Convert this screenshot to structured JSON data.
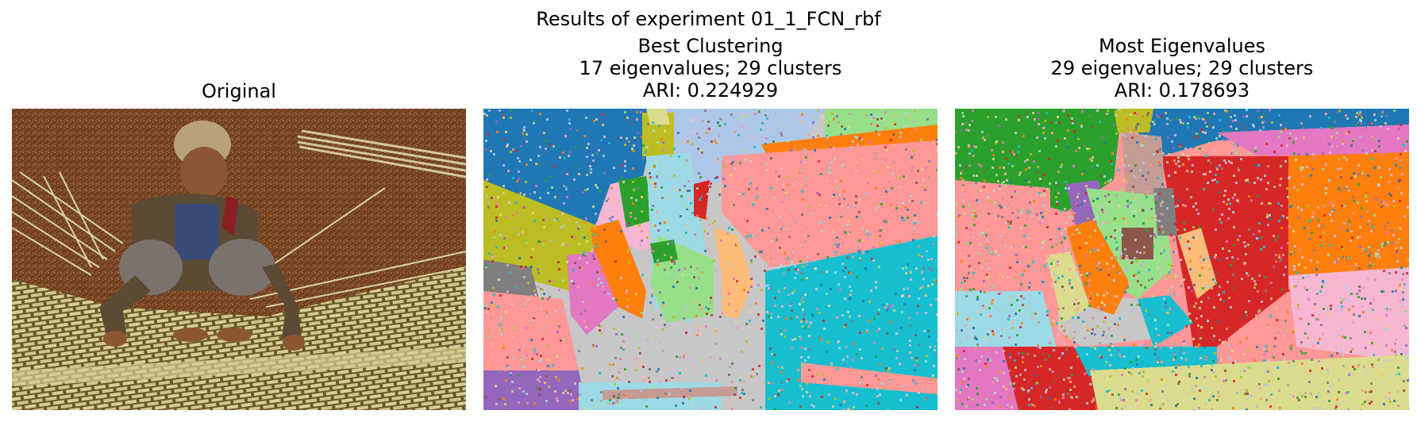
{
  "figure": {
    "suptitle": "Results of experiment 01_1_FCN_rbf"
  },
  "panels": [
    {
      "id": "original",
      "title_lines": [
        "Original"
      ],
      "content": "photo"
    },
    {
      "id": "best",
      "title_lines": [
        "Best Clustering",
        "17 eigenvalues; 29 clusters",
        "ARI: 0.224929"
      ],
      "eigenvalues": 17,
      "clusters": 29,
      "ari": 0.224929
    },
    {
      "id": "most",
      "title_lines": [
        "Most Eigenvalues",
        "29 eigenvalues; 29 clusters",
        "ARI: 0.178693"
      ],
      "eigenvalues": 29,
      "clusters": 29,
      "ari": 0.178693
    }
  ],
  "palette": [
    "#1f77b4",
    "#aec7e8",
    "#ff7f0e",
    "#ffbb78",
    "#2ca02c",
    "#98df8a",
    "#d62728",
    "#ff9896",
    "#9467bd",
    "#c5b0d5",
    "#8c564b",
    "#c49c94",
    "#e377c2",
    "#f7b6d2",
    "#7f7f7f",
    "#c7c7c7",
    "#bcbd22",
    "#dbdb8d",
    "#17becf",
    "#9edae5"
  ]
}
